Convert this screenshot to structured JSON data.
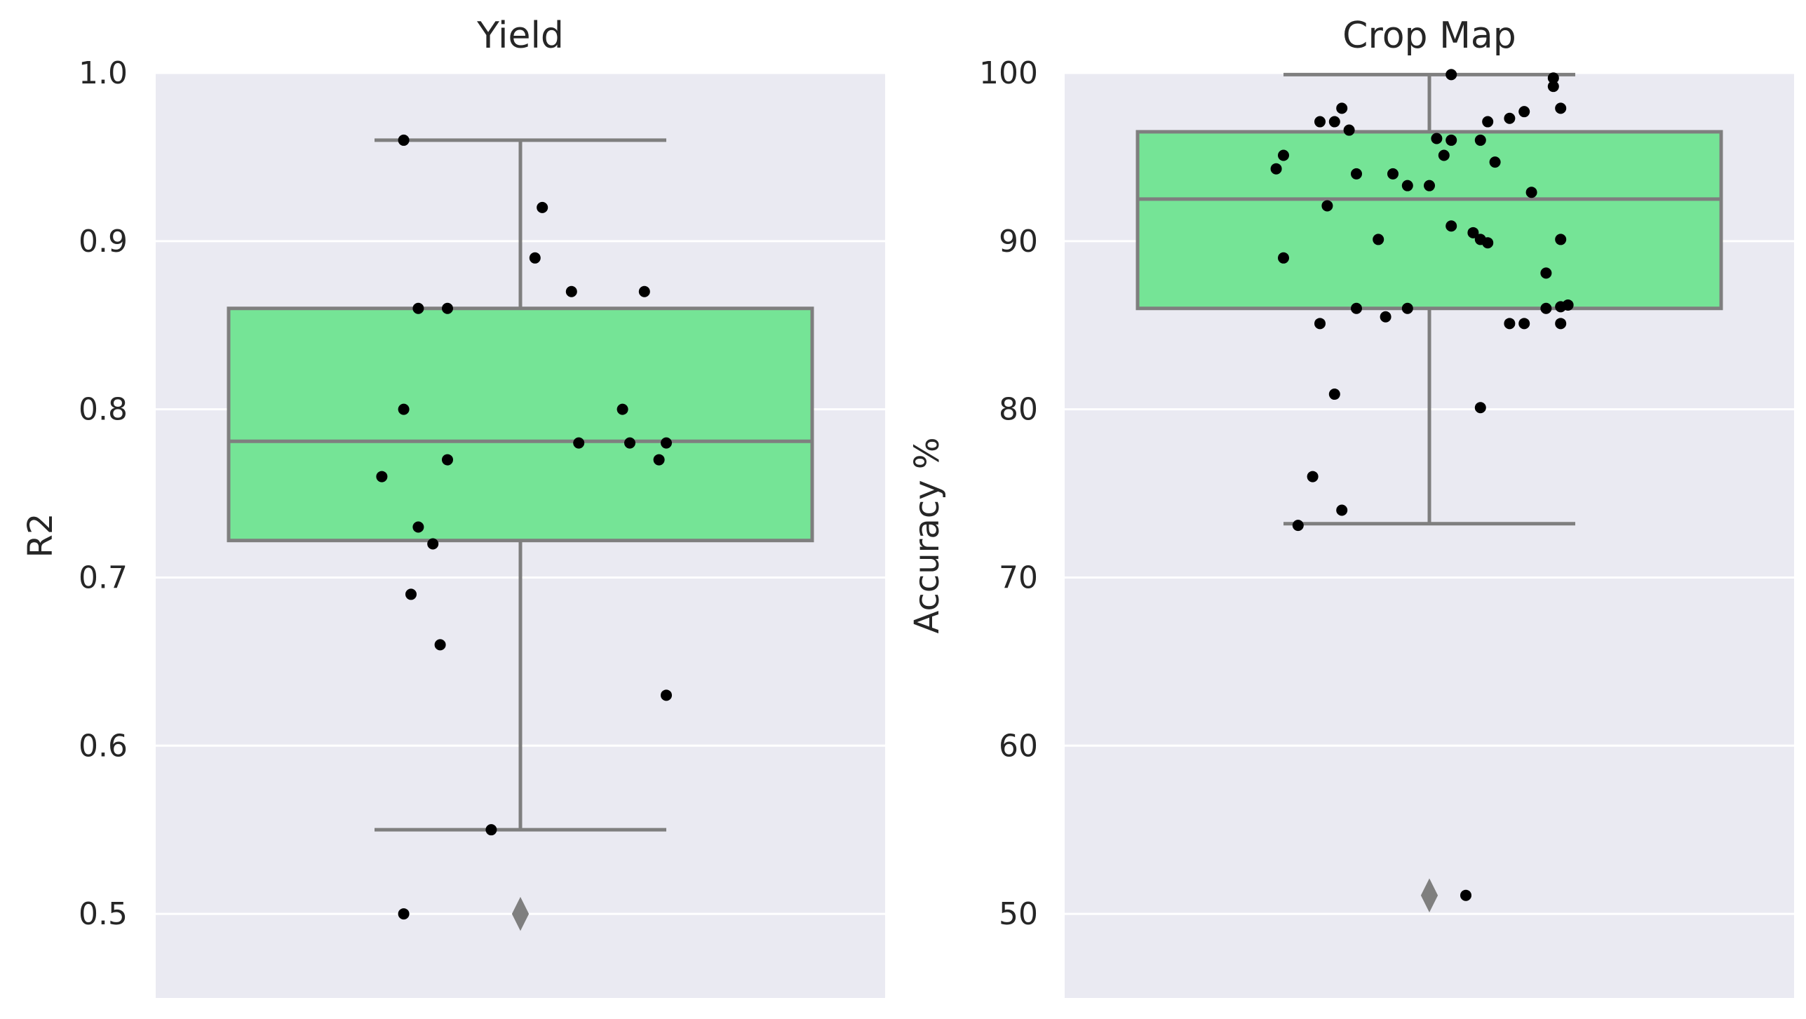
{
  "chart_data": [
    {
      "type": "box",
      "title": "Yield",
      "xlabel": "",
      "ylabel": "R2",
      "ylim": [
        0.45,
        1.0
      ],
      "yticks": [
        0.5,
        0.6,
        0.7,
        0.8,
        0.9,
        1.0
      ],
      "ytick_labels": [
        "0.5",
        "0.6",
        "0.7",
        "0.8",
        "0.9",
        "1.0"
      ],
      "grid": true,
      "box_color": "#75e496",
      "box": {
        "q1": 0.722,
        "median": 0.781,
        "q3": 0.86,
        "whisker_low": 0.55,
        "whisker_high": 0.96
      },
      "outliers": [
        0.5
      ],
      "points": [
        {
          "x": -0.16,
          "y": 0.96
        },
        {
          "x": 0.03,
          "y": 0.92
        },
        {
          "x": 0.02,
          "y": 0.89
        },
        {
          "x": 0.07,
          "y": 0.87
        },
        {
          "x": 0.17,
          "y": 0.87
        },
        {
          "x": -0.14,
          "y": 0.86
        },
        {
          "x": -0.1,
          "y": 0.86
        },
        {
          "x": -0.16,
          "y": 0.8
        },
        {
          "x": 0.14,
          "y": 0.8
        },
        {
          "x": 0.08,
          "y": 0.78
        },
        {
          "x": 0.15,
          "y": 0.78
        },
        {
          "x": 0.2,
          "y": 0.78
        },
        {
          "x": -0.1,
          "y": 0.77
        },
        {
          "x": 0.19,
          "y": 0.77
        },
        {
          "x": -0.19,
          "y": 0.76
        },
        {
          "x": -0.14,
          "y": 0.73
        },
        {
          "x": -0.12,
          "y": 0.72
        },
        {
          "x": -0.15,
          "y": 0.69
        },
        {
          "x": -0.11,
          "y": 0.66
        },
        {
          "x": 0.2,
          "y": 0.63
        },
        {
          "x": -0.04,
          "y": 0.55
        },
        {
          "x": -0.16,
          "y": 0.5
        }
      ]
    },
    {
      "type": "box",
      "title": "Crop Map",
      "xlabel": "",
      "ylabel": "Accuracy %",
      "ylim": [
        45,
        100
      ],
      "yticks": [
        50,
        60,
        70,
        80,
        90,
        100
      ],
      "ytick_labels": [
        "50",
        "60",
        "70",
        "80",
        "90",
        "100"
      ],
      "grid": true,
      "box_color": "#75e496",
      "box": {
        "q1": 86.0,
        "median": 92.5,
        "q3": 96.5,
        "whisker_low": 73.2,
        "whisker_high": 99.9
      },
      "outliers": [
        51.1
      ],
      "points": [
        {
          "x": 0.03,
          "y": 99.9
        },
        {
          "x": 0.17,
          "y": 99.7
        },
        {
          "x": 0.17,
          "y": 99.2
        },
        {
          "x": -0.12,
          "y": 97.9
        },
        {
          "x": 0.13,
          "y": 97.7
        },
        {
          "x": 0.18,
          "y": 97.9
        },
        {
          "x": -0.15,
          "y": 97.1
        },
        {
          "x": -0.13,
          "y": 97.1
        },
        {
          "x": 0.08,
          "y": 97.1
        },
        {
          "x": 0.11,
          "y": 97.3
        },
        {
          "x": -0.11,
          "y": 96.6
        },
        {
          "x": 0.01,
          "y": 96.1
        },
        {
          "x": 0.03,
          "y": 96.0
        },
        {
          "x": 0.07,
          "y": 96.0
        },
        {
          "x": -0.2,
          "y": 95.1
        },
        {
          "x": 0.02,
          "y": 95.1
        },
        {
          "x": 0.09,
          "y": 94.7
        },
        {
          "x": -0.21,
          "y": 94.3
        },
        {
          "x": -0.1,
          "y": 94.0
        },
        {
          "x": -0.05,
          "y": 94.0
        },
        {
          "x": -0.03,
          "y": 93.3
        },
        {
          "x": 0.0,
          "y": 93.3
        },
        {
          "x": 0.14,
          "y": 92.9
        },
        {
          "x": -0.14,
          "y": 92.1
        },
        {
          "x": 0.03,
          "y": 90.9
        },
        {
          "x": 0.06,
          "y": 90.5
        },
        {
          "x": 0.07,
          "y": 90.1
        },
        {
          "x": 0.08,
          "y": 89.9
        },
        {
          "x": -0.07,
          "y": 90.1
        },
        {
          "x": 0.18,
          "y": 90.1
        },
        {
          "x": -0.2,
          "y": 89.0
        },
        {
          "x": 0.16,
          "y": 88.1
        },
        {
          "x": 0.18,
          "y": 86.1
        },
        {
          "x": -0.1,
          "y": 86.0
        },
        {
          "x": -0.03,
          "y": 86.0
        },
        {
          "x": 0.16,
          "y": 86.0
        },
        {
          "x": 0.19,
          "y": 86.2
        },
        {
          "x": -0.06,
          "y": 85.5
        },
        {
          "x": -0.15,
          "y": 85.1
        },
        {
          "x": 0.11,
          "y": 85.1
        },
        {
          "x": 0.13,
          "y": 85.1
        },
        {
          "x": 0.18,
          "y": 85.1
        },
        {
          "x": -0.13,
          "y": 80.9
        },
        {
          "x": 0.07,
          "y": 80.1
        },
        {
          "x": -0.16,
          "y": 76.0
        },
        {
          "x": -0.12,
          "y": 74.0
        },
        {
          "x": -0.18,
          "y": 73.1
        },
        {
          "x": 0.05,
          "y": 51.1
        }
      ]
    }
  ]
}
